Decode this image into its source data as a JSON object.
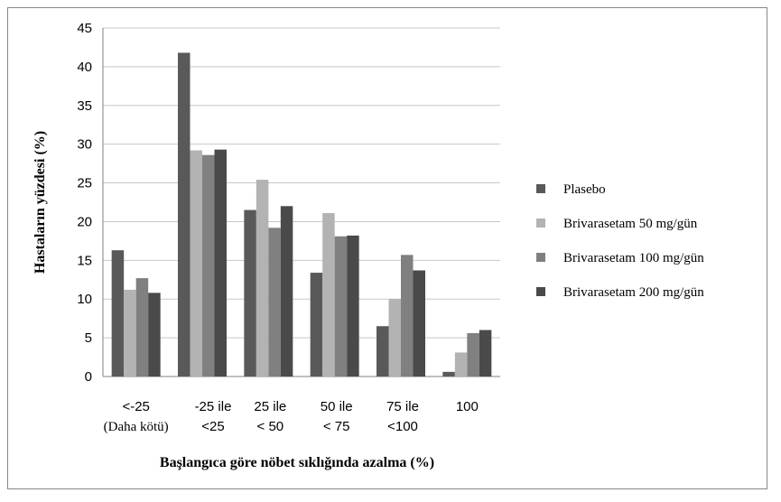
{
  "chart_data": {
    "type": "bar",
    "title": "",
    "xlabel": "Başlangıca göre nöbet sıklığında azalma (%)",
    "ylabel": "Hastaların yüzdesi (%)",
    "ylim": [
      0,
      45
    ],
    "yticks": [
      0,
      5,
      10,
      15,
      20,
      25,
      30,
      35,
      40,
      45
    ],
    "grid": true,
    "legend_position": "right",
    "categories": [
      [
        "<-25",
        "(Daha kötü)"
      ],
      [
        "-25 ile",
        "<25"
      ],
      [
        "25 ile",
        "< 50"
      ],
      [
        "50 ile",
        "< 75"
      ],
      [
        "75 ile",
        "<100"
      ],
      [
        "100"
      ]
    ],
    "series": [
      {
        "name": "Plasebo",
        "color": "#595959",
        "values": [
          16.3,
          41.8,
          21.5,
          13.4,
          6.5,
          0.6
        ]
      },
      {
        "name": "Brivarasetam  50 mg/gün",
        "color": "#b3b3b3",
        "values": [
          11.2,
          29.2,
          25.4,
          21.1,
          10.0,
          3.1
        ]
      },
      {
        "name": "Brivarasetam  100 mg/gün",
        "color": "#808080",
        "values": [
          12.7,
          28.6,
          19.2,
          18.1,
          15.7,
          5.6
        ]
      },
      {
        "name": "Brivarasetam  200 mg/gün",
        "color": "#4a4a4a",
        "values": [
          10.8,
          29.3,
          22.0,
          18.2,
          13.7,
          6.0
        ]
      }
    ]
  }
}
